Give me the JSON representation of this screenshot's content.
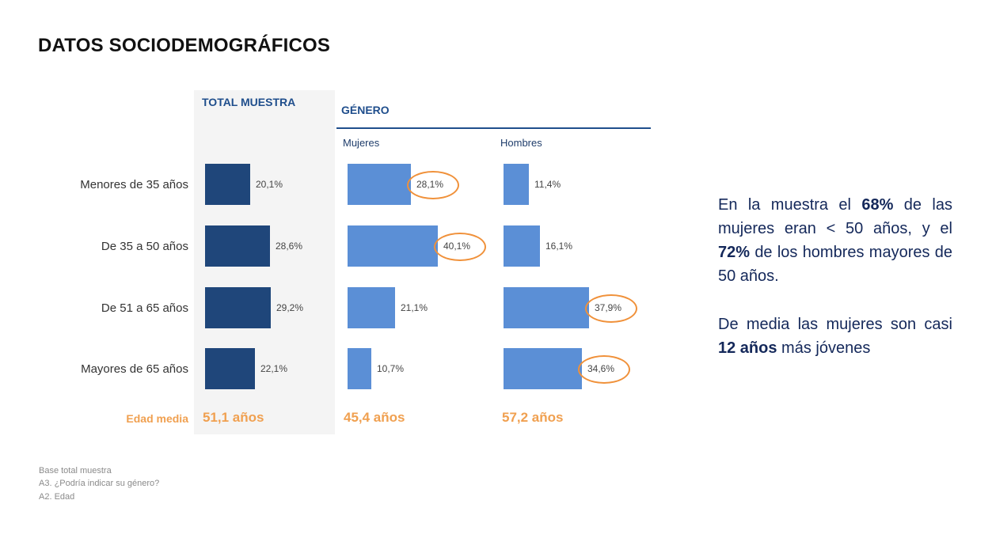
{
  "title": "DATOS SOCIODEMOGRÁFICOS",
  "headers": {
    "total": "TOTAL MUESTRA",
    "genero": "GÉNERO",
    "mujeres": "Mujeres",
    "hombres": "Hombres"
  },
  "colors": {
    "total_bar": "#1f467a",
    "gender_bar": "#5b8fd6",
    "accent_orange": "#f0a050",
    "header_blue": "#1f4e8c",
    "note_text": "#14285a"
  },
  "chart_data": {
    "type": "bar",
    "orientation": "horizontal",
    "categories": [
      "Menores de 35 años",
      "De 35 a 50 años",
      "De 51 a 65 años",
      "Mayores de  65 años"
    ],
    "series": [
      {
        "name": "TOTAL MUESTRA",
        "values": [
          20.1,
          28.6,
          29.2,
          22.1
        ],
        "labels": [
          "20,1%",
          "28,6%",
          "29,2%",
          "22,1%"
        ]
      },
      {
        "name": "Mujeres",
        "values": [
          28.1,
          40.1,
          21.1,
          10.7
        ],
        "labels": [
          "28,1%",
          "40,1%",
          "21,1%",
          "10,7%"
        ]
      },
      {
        "name": "Hombres",
        "values": [
          11.4,
          16.1,
          37.9,
          34.6
        ],
        "labels": [
          "11,4%",
          "16,1%",
          "37,9%",
          "34,6%"
        ]
      }
    ],
    "highlighted": {
      "Mujeres": [
        0,
        1
      ],
      "Hombres": [
        2,
        3
      ]
    },
    "edad_media_label": "Edad media",
    "edad_media": [
      "51,1 años",
      "45,4 años",
      "57,2 años"
    ]
  },
  "notes": {
    "p1_a": "En la muestra el ",
    "p1_b": "68%",
    "p1_c": " de las mujeres eran < 50 años, y el ",
    "p1_d": "72%",
    "p1_e": " de los hombres mayores de 50 años.",
    "p2_a": "De media las mujeres son casi ",
    "p2_b": "12 años",
    "p2_c": " más jóvenes"
  },
  "footnotes": [
    "Base total muestra",
    "A3. ¿Podría indicar su género?",
    "A2. Edad"
  ]
}
